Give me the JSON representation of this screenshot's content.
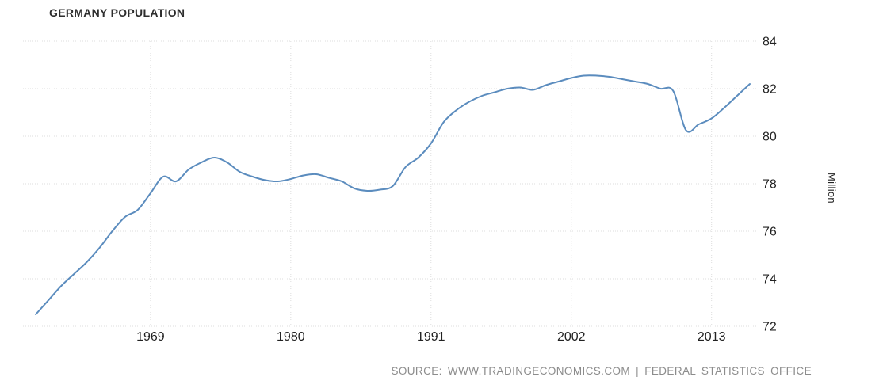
{
  "chart": {
    "title": "GERMANY POPULATION",
    "ylabel": "Million",
    "source": "SOURCE: WWW.TRADINGECONOMICS.COM | FEDERAL STATISTICS OFFICE",
    "line_color": "#5b8cbe",
    "grid_color": "#dedede",
    "text_color": "#222222",
    "title_color": "#2d2d2d",
    "source_color": "#8c8c8c"
  },
  "chart_data": {
    "type": "line",
    "title": "GERMANY POPULATION",
    "xlabel": "",
    "ylabel": "Million",
    "unit": "Million",
    "grid": true,
    "legend": false,
    "smooth": true,
    "x_ticks": [
      1969,
      1980,
      1991,
      2002,
      2013
    ],
    "y_ticks": [
      72,
      74,
      76,
      78,
      80,
      82,
      84
    ],
    "x_range": [
      1959,
      2016.5
    ],
    "ylim": [
      72,
      84
    ],
    "series": [
      {
        "name": "Germany Population",
        "x": [
          1960,
          1961,
          1962,
          1963,
          1964,
          1965,
          1966,
          1967,
          1968,
          1969,
          1970,
          1971,
          1972,
          1973,
          1974,
          1975,
          1976,
          1977,
          1978,
          1979,
          1980,
          1981,
          1982,
          1983,
          1984,
          1985,
          1986,
          1987,
          1988,
          1989,
          1990,
          1991,
          1992,
          1993,
          1994,
          1995,
          1996,
          1997,
          1998,
          1999,
          2000,
          2001,
          2002,
          2003,
          2004,
          2005,
          2006,
          2007,
          2008,
          2009,
          2010,
          2011,
          2012,
          2013,
          2014,
          2015,
          2016
        ],
        "values": [
          72.5,
          73.1,
          73.7,
          74.2,
          74.7,
          75.3,
          76.0,
          76.6,
          76.9,
          77.6,
          78.3,
          78.1,
          78.6,
          78.9,
          79.1,
          78.9,
          78.5,
          78.3,
          78.15,
          78.1,
          78.2,
          78.35,
          78.4,
          78.25,
          78.1,
          77.8,
          77.7,
          77.75,
          77.9,
          78.7,
          79.1,
          79.7,
          80.6,
          81.1,
          81.45,
          81.7,
          81.85,
          82.0,
          82.05,
          81.95,
          82.15,
          82.3,
          82.45,
          82.55,
          82.55,
          82.5,
          82.4,
          82.3,
          82.2,
          82.0,
          81.9,
          80.25,
          80.5,
          80.75,
          81.2,
          81.7,
          82.2
        ]
      }
    ]
  }
}
